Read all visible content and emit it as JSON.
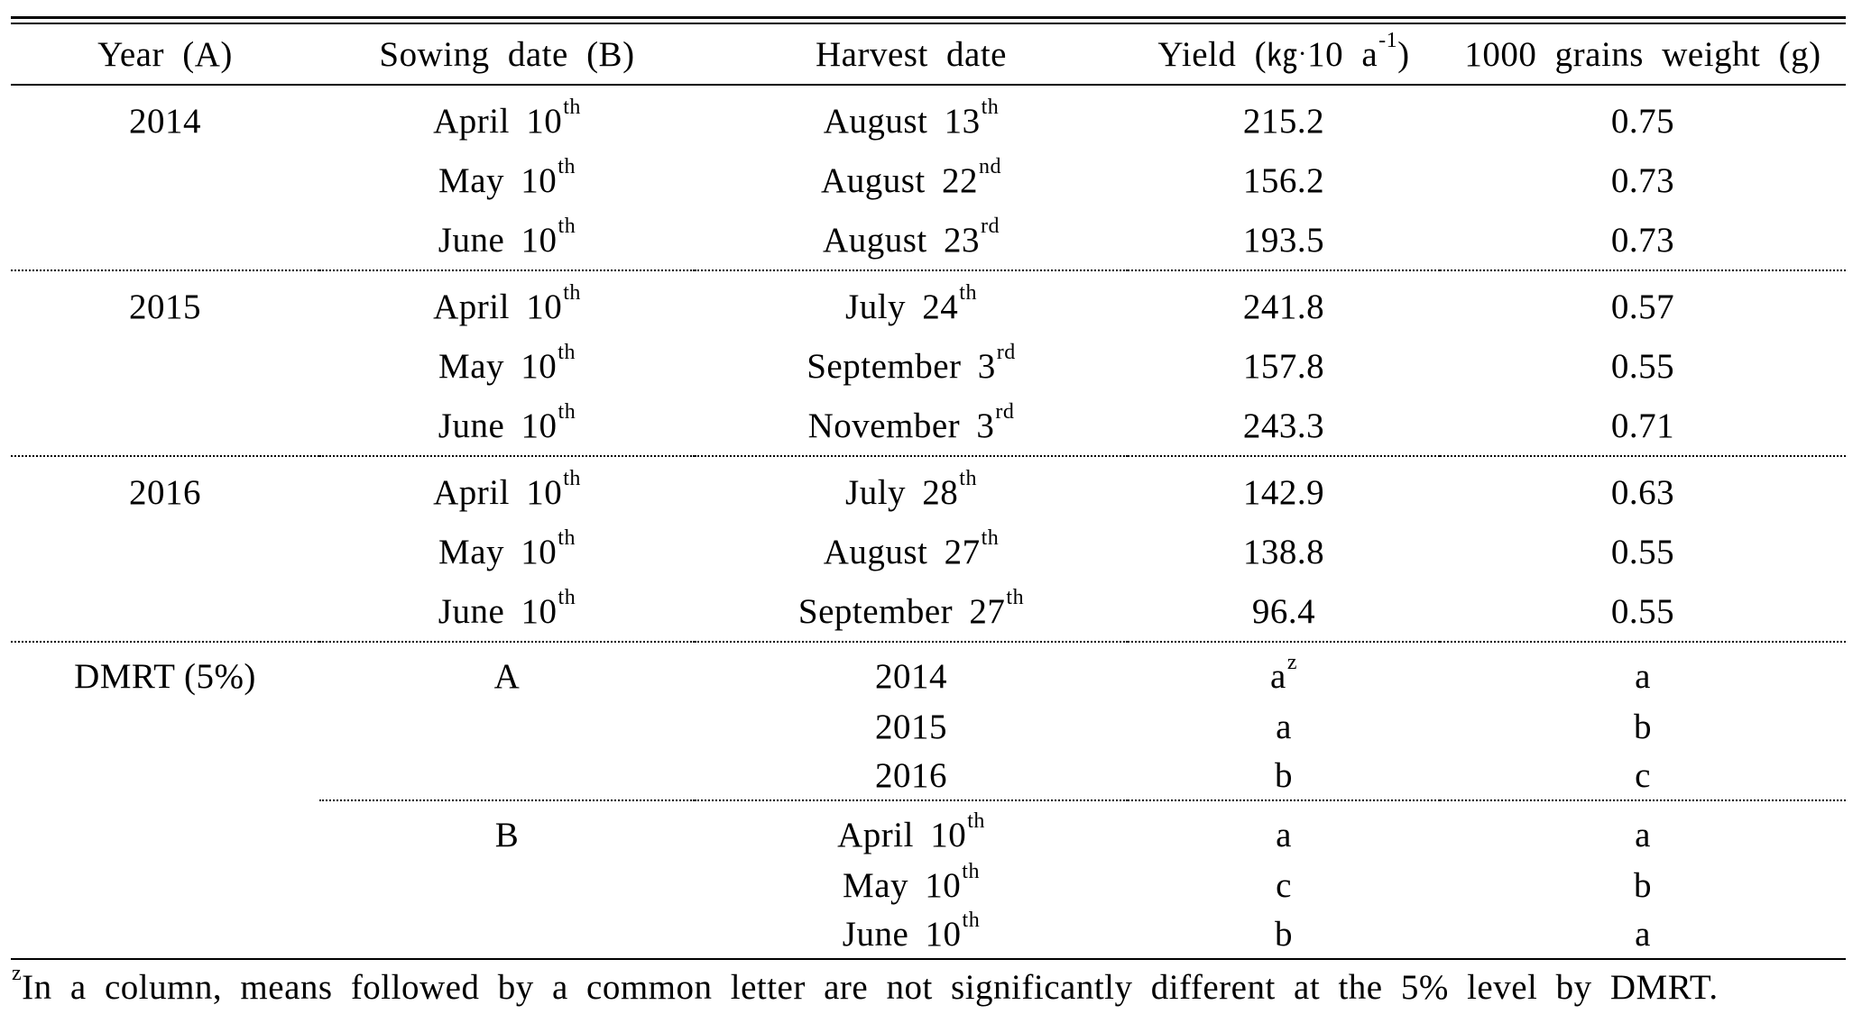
{
  "table": {
    "headers": {
      "year": "Year (A)",
      "sowing": "Sowing date (B)",
      "harvest": "Harvest date",
      "yield_prefix": "Yield (",
      "yield_unit_kg": "㎏",
      "yield_dot": "·",
      "yield_unit_rest": "10 a",
      "yield_sup": "-1",
      "yield_suffix": ")",
      "weight": "1000 grains weight (g)"
    },
    "groups": [
      {
        "year": "2014",
        "rows": [
          {
            "sow_month": "April 10",
            "sow_sup": "th",
            "harv_month": "August 13",
            "harv_sup": "th",
            "yield": "215.2",
            "weight": "0.75"
          },
          {
            "sow_month": "May 10",
            "sow_sup": "th",
            "harv_month": "August 22",
            "harv_sup": "nd",
            "yield": "156.2",
            "weight": "0.73"
          },
          {
            "sow_month": "June 10",
            "sow_sup": "th",
            "harv_month": "August 23",
            "harv_sup": "rd",
            "yield": "193.5",
            "weight": "0.73"
          }
        ]
      },
      {
        "year": "2015",
        "rows": [
          {
            "sow_month": "April 10",
            "sow_sup": "th",
            "harv_month": "July 24",
            "harv_sup": "th",
            "yield": "241.8",
            "weight": "0.57"
          },
          {
            "sow_month": "May 10",
            "sow_sup": "th",
            "harv_month": "September 3",
            "harv_sup": "rd",
            "yield": "157.8",
            "weight": "0.55"
          },
          {
            "sow_month": "June 10",
            "sow_sup": "th",
            "harv_month": "November 3",
            "harv_sup": "rd",
            "yield": "243.3",
            "weight": "0.71"
          }
        ]
      },
      {
        "year": "2016",
        "rows": [
          {
            "sow_month": "April 10",
            "sow_sup": "th",
            "harv_month": "July 28",
            "harv_sup": "th",
            "yield": "142.9",
            "weight": "0.63"
          },
          {
            "sow_month": "May 10",
            "sow_sup": "th",
            "harv_month": "August 27",
            "harv_sup": "th",
            "yield": "138.8",
            "weight": "0.55"
          },
          {
            "sow_month": "June 10",
            "sow_sup": "th",
            "harv_month": "September 27",
            "harv_sup": "th",
            "yield": "96.4",
            "weight": "0.55"
          }
        ]
      }
    ],
    "dmrt": {
      "label": "DMRT (5%)",
      "factor_a": {
        "label": "A",
        "rows": [
          {
            "level": "2014",
            "yield": "a",
            "yield_sup": "z",
            "weight": "a"
          },
          {
            "level": "2015",
            "yield": "a",
            "weight": "b"
          },
          {
            "level": "2016",
            "yield": "b",
            "weight": "c"
          }
        ]
      },
      "factor_b": {
        "label": "B",
        "rows": [
          {
            "level": "April 10",
            "level_sup": "th",
            "yield": "a",
            "weight": "a"
          },
          {
            "level": "May 10",
            "level_sup": "th",
            "yield": "c",
            "weight": "b"
          },
          {
            "level": "June 10",
            "level_sup": "th",
            "yield": "b",
            "weight": "a"
          }
        ]
      }
    },
    "footnote": {
      "marker": "z",
      "text": "In a column, means followed by a common letter are not significantly different at the 5% level by DMRT."
    }
  }
}
